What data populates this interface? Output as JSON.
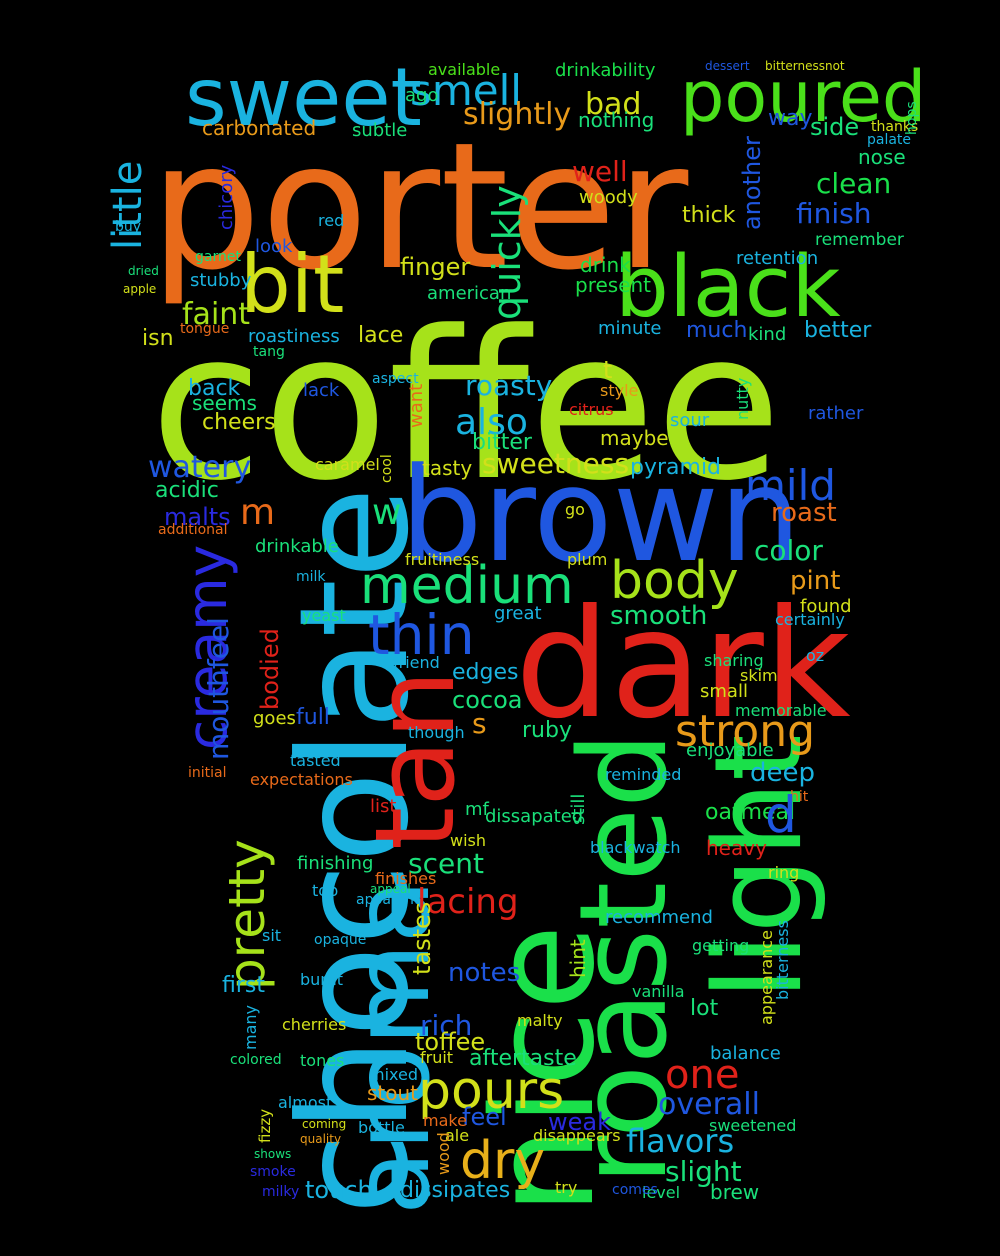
{
  "words": [
    {
      "text": "porter",
      "color": "#e86a1a"
    },
    {
      "text": "coffee",
      "color": "#a6e21a"
    },
    {
      "text": "brown",
      "color": "#1f57e0"
    },
    {
      "text": "dark",
      "color": "#e0221a"
    },
    {
      "text": "chocolate",
      "color": "#1ab3e0"
    },
    {
      "text": "aroma",
      "color": "#1ab3e0"
    },
    {
      "text": "nice",
      "color": "#1ae04a"
    },
    {
      "text": "tan",
      "color": "#e0221a"
    },
    {
      "text": "roasted",
      "color": "#1ae04a"
    },
    {
      "text": "light",
      "color": "#1ae04a"
    },
    {
      "text": "sweet",
      "color": "#1ab3e0"
    },
    {
      "text": "poured",
      "color": "#4ae01a"
    },
    {
      "text": "black",
      "color": "#4ae01a"
    },
    {
      "text": "bit",
      "color": "#d2e01a"
    },
    {
      "text": "body",
      "color": "#a6e21a"
    },
    {
      "text": "medium",
      "color": "#1ae07a"
    },
    {
      "text": "thin",
      "color": "#1f57e0"
    },
    {
      "text": "creamy",
      "color": "#2a2ae0"
    },
    {
      "text": "pretty",
      "color": "#a6e21a"
    },
    {
      "text": "strong",
      "color": "#e89a1a"
    },
    {
      "text": "pours",
      "color": "#d2e01a"
    },
    {
      "text": "dry",
      "color": "#e8b01a"
    },
    {
      "text": "one",
      "color": "#e0221a"
    },
    {
      "text": "little",
      "color": "#1ab3e0"
    },
    {
      "text": "smell",
      "color": "#1ab3e0"
    },
    {
      "text": "quickly",
      "color": "#1ae07a"
    },
    {
      "text": "mild",
      "color": "#1f57e0"
    },
    {
      "text": "sweetness",
      "color": "#d2e01a"
    },
    {
      "text": "also",
      "color": "#1ab3e0"
    },
    {
      "text": "mouthfeel",
      "color": "#1f57e0"
    },
    {
      "text": "overall",
      "color": "#1f57e0"
    },
    {
      "text": "flavors",
      "color": "#1ab3e0"
    },
    {
      "text": "lacing",
      "color": "#e0221a"
    },
    {
      "text": "finish",
      "color": "#1f57e0"
    },
    {
      "text": "clean",
      "color": "#1ae04a"
    },
    {
      "text": "watery",
      "color": "#1f57e0"
    },
    {
      "text": "slightly",
      "color": "#e89a1a"
    },
    {
      "text": "bad",
      "color": "#d2e01a"
    },
    {
      "text": "faint",
      "color": "#a6e21a"
    },
    {
      "text": "well",
      "color": "#e0221a"
    },
    {
      "text": "another",
      "color": "#1f57e0"
    },
    {
      "text": "color",
      "color": "#1ae07a"
    },
    {
      "text": "roast",
      "color": "#e86a1a"
    },
    {
      "text": "smooth",
      "color": "#1ae07a"
    },
    {
      "text": "deep",
      "color": "#1ab3e0"
    },
    {
      "text": "rich",
      "color": "#1f57e0"
    },
    {
      "text": "scent",
      "color": "#1ae07a"
    },
    {
      "text": "slight",
      "color": "#1ae07a"
    },
    {
      "text": "weak",
      "color": "#2a2ae0"
    },
    {
      "text": "touch",
      "color": "#1ab3e0"
    },
    {
      "text": "notes",
      "color": "#1f57e0"
    },
    {
      "text": "roasty",
      "color": "#1ab3e0"
    },
    {
      "text": "feel",
      "color": "#1f57e0"
    },
    {
      "text": "malts",
      "color": "#2a2ae0"
    },
    {
      "text": "bodied",
      "color": "#e0221a"
    },
    {
      "text": "tastes",
      "color": "#d2e01a"
    },
    {
      "text": "cocoa",
      "color": "#1ae07a"
    },
    {
      "text": "toffee",
      "color": "#d2e01a"
    },
    {
      "text": "first",
      "color": "#1ab3e0"
    },
    {
      "text": "pint",
      "color": "#e89a1a"
    },
    {
      "text": "finger",
      "color": "#d2e01a"
    },
    {
      "text": "carbonated",
      "color": "#e89a1a"
    },
    {
      "text": "pyramid",
      "color": "#1ab3e0"
    },
    {
      "text": "bitter",
      "color": "#1ae07a"
    },
    {
      "text": "cheers",
      "color": "#d2e01a"
    },
    {
      "text": "acidic",
      "color": "#1ae07a"
    },
    {
      "text": "thick",
      "color": "#d2e01a"
    },
    {
      "text": "side",
      "color": "#1ae07a"
    },
    {
      "text": "nose",
      "color": "#1ae07a"
    },
    {
      "text": "better",
      "color": "#1ab3e0"
    },
    {
      "text": "much",
      "color": "#1f57e0"
    },
    {
      "text": "brew",
      "color": "#1ae07a"
    },
    {
      "text": "aftertaste",
      "color": "#1ae07a"
    },
    {
      "text": "dissipates",
      "color": "#1ab3e0"
    },
    {
      "text": "ruby",
      "color": "#1ae07a"
    },
    {
      "text": "edges",
      "color": "#1ab3e0"
    },
    {
      "text": "full",
      "color": "#1f57e0"
    },
    {
      "text": "stout",
      "color": "#e89a1a"
    },
    {
      "text": "lot",
      "color": "#1ae07a"
    },
    {
      "text": "oatmeal",
      "color": "#1ae04a"
    },
    {
      "text": "heavy",
      "color": "#e0221a"
    },
    {
      "text": "hint",
      "color": "#a6e21a"
    },
    {
      "text": "balance",
      "color": "#1ab3e0"
    },
    {
      "text": "drink",
      "color": "#1ae04a"
    },
    {
      "text": "present",
      "color": "#1ae04a"
    },
    {
      "text": "maybe",
      "color": "#d2e01a"
    },
    {
      "text": "tasty",
      "color": "#d2e01a"
    },
    {
      "text": "lace",
      "color": "#d2e01a"
    },
    {
      "text": "seems",
      "color": "#1ae07a"
    },
    {
      "text": "back",
      "color": "#1ab3e0"
    },
    {
      "text": "isn",
      "color": "#d2e01a"
    },
    {
      "text": "way",
      "color": "#1f57e0"
    },
    {
      "text": "drinkability",
      "color": "#1ae04a"
    },
    {
      "text": "ago",
      "color": "#1ae07a"
    },
    {
      "text": "available",
      "color": "#4ae01a"
    },
    {
      "text": "nothing",
      "color": "#1ae07a"
    },
    {
      "text": "subtle",
      "color": "#1ae07a"
    },
    {
      "text": "woody",
      "color": "#d2e01a"
    },
    {
      "text": "chicory",
      "color": "#2a2ae0"
    },
    {
      "text": "remember",
      "color": "#1ae07a"
    },
    {
      "text": "retention",
      "color": "#1ab3e0"
    },
    {
      "text": "kind",
      "color": "#1ae07a"
    },
    {
      "text": "minute",
      "color": "#1ab3e0"
    },
    {
      "text": "stubby",
      "color": "#1ab3e0"
    },
    {
      "text": "look",
      "color": "#1f57e0"
    },
    {
      "text": "roastiness",
      "color": "#1ab3e0"
    },
    {
      "text": "american",
      "color": "#1ae07a"
    },
    {
      "text": "lack",
      "color": "#1f57e0"
    },
    {
      "text": "want",
      "color": "#e86a1a"
    },
    {
      "text": "caramel",
      "color": "#d2e01a"
    },
    {
      "text": "drinkable",
      "color": "#1ae07a"
    },
    {
      "text": "fruitiness",
      "color": "#d2e01a"
    },
    {
      "text": "great",
      "color": "#1ab3e0"
    },
    {
      "text": "found",
      "color": "#d2e01a"
    },
    {
      "text": "certainly",
      "color": "#1ab3e0"
    },
    {
      "text": "sharing",
      "color": "#1ae07a"
    },
    {
      "text": "skim",
      "color": "#d2e01a"
    },
    {
      "text": "small",
      "color": "#d2e01a"
    },
    {
      "text": "memorable",
      "color": "#1ae07a"
    },
    {
      "text": "enjoyable",
      "color": "#1ae07a"
    },
    {
      "text": "reminded",
      "color": "#1ab3e0"
    },
    {
      "text": "expectations",
      "color": "#e86a1a"
    },
    {
      "text": "tasted",
      "color": "#1ab3e0"
    },
    {
      "text": "goes",
      "color": "#d2e01a"
    },
    {
      "text": "list",
      "color": "#e0221a"
    },
    {
      "text": "dissapated",
      "color": "#1ae07a"
    },
    {
      "text": "finishing",
      "color": "#1ae07a"
    },
    {
      "text": "finishes",
      "color": "#e86a1a"
    },
    {
      "text": "recommend",
      "color": "#1ab3e0"
    },
    {
      "text": "getting",
      "color": "#1ae07a"
    },
    {
      "text": "vanilla",
      "color": "#1ae07a"
    },
    {
      "text": "appearance",
      "color": "#d2e01a"
    },
    {
      "text": "bitterness",
      "color": "#1ab3e0"
    },
    {
      "text": "many",
      "color": "#1ab3e0"
    },
    {
      "text": "cherries",
      "color": "#d2e01a"
    },
    {
      "text": "burnt",
      "color": "#1ab3e0"
    },
    {
      "text": "malty",
      "color": "#d2e01a"
    },
    {
      "text": "fruit",
      "color": "#d2e01a"
    },
    {
      "text": "mixed",
      "color": "#1ab3e0"
    },
    {
      "text": "almost",
      "color": "#1ab3e0"
    },
    {
      "text": "bottle",
      "color": "#1ab3e0"
    },
    {
      "text": "ale",
      "color": "#d2e01a"
    },
    {
      "text": "make",
      "color": "#e86a1a"
    },
    {
      "text": "disappears",
      "color": "#d2e01a"
    },
    {
      "text": "sweetened",
      "color": "#1ae07a"
    },
    {
      "text": "level",
      "color": "#1ae07a"
    },
    {
      "text": "comes",
      "color": "#1f57e0"
    },
    {
      "text": "try",
      "color": "#d2e01a"
    },
    {
      "text": "wood",
      "color": "#e89a1a"
    },
    {
      "text": "fizzy",
      "color": "#d2e01a"
    },
    {
      "text": "smoke",
      "color": "#2a2ae0"
    },
    {
      "text": "milky",
      "color": "#2a2ae0"
    },
    {
      "text": "shows",
      "color": "#1ae07a"
    },
    {
      "text": "quality",
      "color": "#e89a1a"
    },
    {
      "text": "coming",
      "color": "#d2e01a"
    },
    {
      "text": "colored",
      "color": "#1ae07a"
    },
    {
      "text": "tones",
      "color": "#1ae07a"
    },
    {
      "text": "sit",
      "color": "#1ab3e0"
    },
    {
      "text": "top",
      "color": "#1ab3e0"
    },
    {
      "text": "apparent",
      "color": "#1ab3e0"
    },
    {
      "text": "appeal",
      "color": "#1ae07a"
    },
    {
      "text": "opaque",
      "color": "#1ab3e0"
    },
    {
      "text": "friend",
      "color": "#1ab3e0"
    },
    {
      "text": "though",
      "color": "#1ab3e0"
    },
    {
      "text": "yeast",
      "color": "#1ae07a"
    },
    {
      "text": "still",
      "color": "#1ae07a"
    },
    {
      "text": "blackwatch",
      "color": "#1ab3e0"
    },
    {
      "text": "ring",
      "color": "#d2e01a"
    },
    {
      "text": "wish",
      "color": "#d2e01a"
    },
    {
      "text": "mf",
      "color": "#1ae07a"
    },
    {
      "text": "cool",
      "color": "#d2e01a"
    },
    {
      "text": "plum",
      "color": "#d2e01a"
    },
    {
      "text": "citrus",
      "color": "#e0221a"
    },
    {
      "text": "style",
      "color": "#e89a1a"
    },
    {
      "text": "aspect",
      "color": "#1ab3e0"
    },
    {
      "text": "sour",
      "color": "#1ab3e0"
    },
    {
      "text": "rather",
      "color": "#1f57e0"
    },
    {
      "text": "nutty",
      "color": "#1ae07a"
    },
    {
      "text": "tongue",
      "color": "#e86a1a"
    },
    {
      "text": "tang",
      "color": "#1ae07a"
    },
    {
      "text": "garnet",
      "color": "#1ae07a"
    },
    {
      "text": "red",
      "color": "#1ab3e0"
    },
    {
      "text": "buy",
      "color": "#1ab3e0"
    },
    {
      "text": "dried",
      "color": "#1ae07a"
    },
    {
      "text": "apple",
      "color": "#d2e01a"
    },
    {
      "text": "milk",
      "color": "#1ab3e0"
    },
    {
      "text": "oz",
      "color": "#1ab3e0"
    },
    {
      "text": "go",
      "color": "#d2e01a"
    },
    {
      "text": "hit",
      "color": "#e86a1a"
    },
    {
      "text": "thanks",
      "color": "#d2e01a"
    },
    {
      "text": "hops",
      "color": "#1ae07a"
    },
    {
      "text": "palate",
      "color": "#1ab3e0"
    },
    {
      "text": "dessert",
      "color": "#1f57e0"
    },
    {
      "text": "bitternessnot",
      "color": "#d2e01a"
    },
    {
      "text": "w",
      "color": "#1ae07a"
    },
    {
      "text": "m",
      "color": "#e86a1a"
    },
    {
      "text": "s",
      "color": "#e89a1a"
    },
    {
      "text": "t",
      "color": "#d2e01a"
    },
    {
      "text": "d",
      "color": "#1f57e0"
    },
    {
      "text": "initial",
      "color": "#e86a1a"
    },
    {
      "text": "additional",
      "color": "#e86a1a"
    }
  ]
}
